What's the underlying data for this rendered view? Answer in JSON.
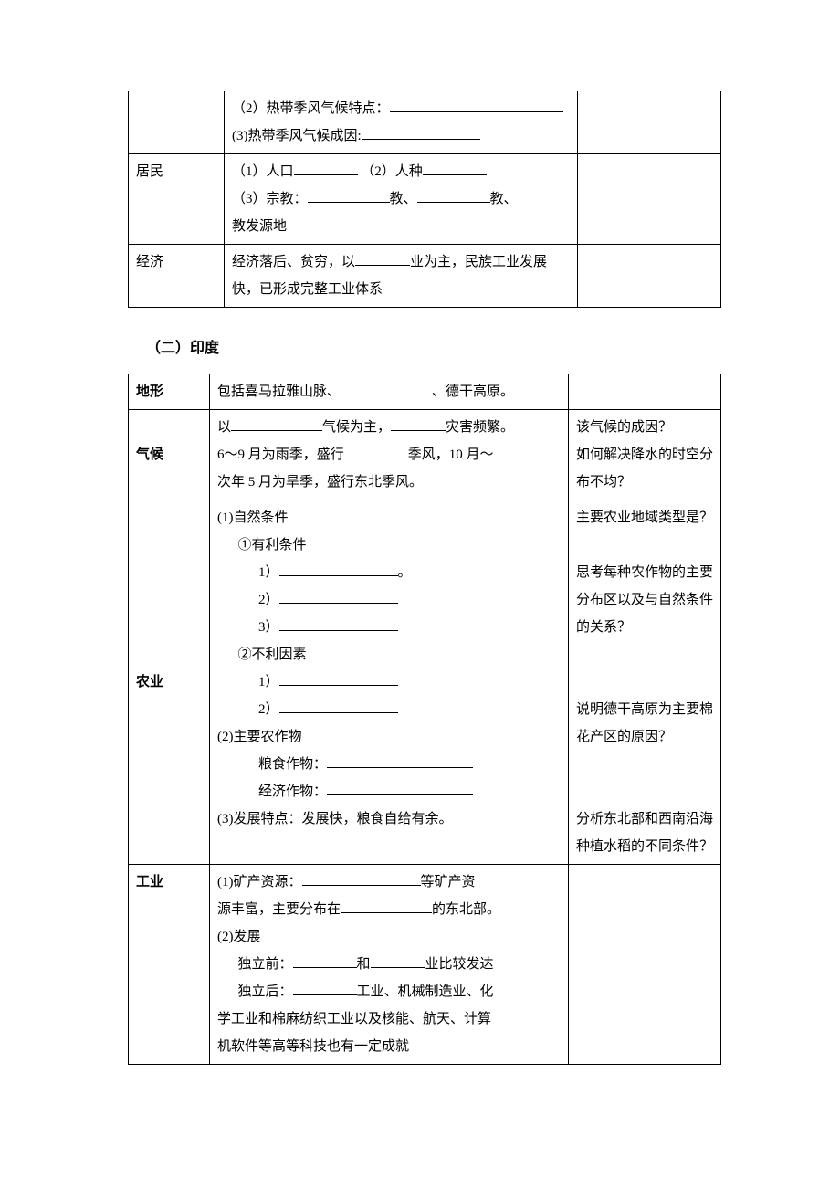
{
  "table1": {
    "rows": [
      {
        "label": "",
        "content_lines": [
          "（2）热带季风气候特点：",
          "(3)热带季风气候成因:"
        ],
        "right": ""
      },
      {
        "label": "居民",
        "content_parts": {
          "p1a": "（1）人口",
          "p1b": "（2）人种",
          "p2a": "（3）宗教：",
          "p2b": "教、",
          "p2c": "教、",
          "p3": "教发源地"
        },
        "right": ""
      },
      {
        "label": "经济",
        "content_parts": {
          "p1a": "经济落后、贫穷，以",
          "p1b": "业为主，民族工业发展",
          "p2": "快，已形成完整工业体系"
        },
        "right": ""
      }
    ]
  },
  "heading2": "（二）印度",
  "table2": {
    "rows": {
      "terrain": {
        "label": "地形",
        "content": {
          "a": "包括喜马拉雅山脉、",
          "b": "、德干高原。"
        },
        "right": ""
      },
      "climate": {
        "label": "气候",
        "content": {
          "l1a": "以",
          "l1b": "气候为主，",
          "l1c": "灾害频繁。",
          "l2a": "6～9 月为雨季，盛行",
          "l2b": "季风，10 月～",
          "l3": "次年 5 月为旱季，盛行东北季风。"
        },
        "right": {
          "q1": "该气候的成因？",
          "q2": "如何解决降水的时空分布不均？"
        }
      },
      "agriculture": {
        "label": "农业",
        "content": {
          "h1": "(1)自然条件",
          "h1a": "①有利条件",
          "h1a1": "1）",
          "h1a1_suffix": "。",
          "h1a2": "2）",
          "h1a3": "3）",
          "h1b": "②不利因素",
          "h1b1": "1）",
          "h1b2": "2）",
          "h2": "(2)主要农作物",
          "h2a": "粮食作物：",
          "h2b": "经济作物：",
          "h3": "(3)发展特点：发展快，粮食自给有余。"
        },
        "right": {
          "q1": "主要农业地域类型是？",
          "q2": "思考每种农作物的主要分布区以及与自然条件的关系？",
          "q3": "说明德干高原为主要棉花产区的原因？",
          "q4": "分析东北部和西南沿海种植水稻的不同条件？"
        }
      },
      "industry": {
        "label": "工业",
        "content": {
          "l1a": "(1)矿产资源：",
          "l1b": "等矿产资",
          "l2a": "源丰富，主要分布在",
          "l2b": "的东北部。",
          "l3": "(2)发展",
          "l4a": "独立前：",
          "l4b": "和",
          "l4c": "业比较发达",
          "l5a": "独立后：",
          "l5b": "工业、机械制造业、化",
          "l6": "学工业和棉麻纺织工业以及核能、航天、计算",
          "l7": "机软件等高等科技也有一定成就"
        },
        "right": ""
      }
    }
  }
}
